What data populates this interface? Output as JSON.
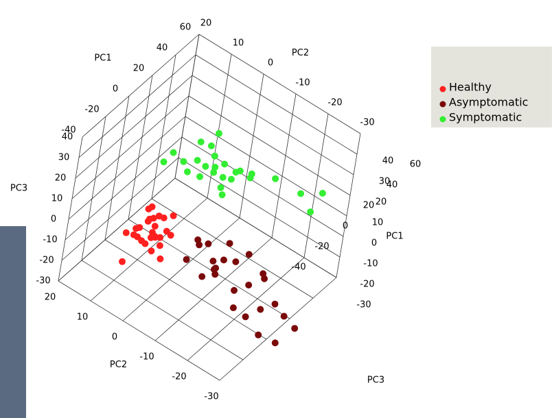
{
  "chart_data": {
    "type": "scatter3d",
    "xlabel": "PC1",
    "ylabel": "PC2",
    "zlabel": "PC3",
    "xlim": [
      -40,
      60
    ],
    "xticks": [
      -40,
      -20,
      0,
      20,
      40,
      60
    ],
    "ylim": [
      -30,
      20
    ],
    "yticks": [
      -30,
      -20,
      -10,
      0,
      10,
      20
    ],
    "zlim": [
      -30,
      40
    ],
    "zticks": [
      -30,
      -20,
      -10,
      0,
      10,
      20,
      30,
      40
    ],
    "grid": true,
    "legend": "upper right",
    "series": [
      {
        "name": "Healthy",
        "color": "#ff2020",
        "x": [
          -18,
          -20,
          -15,
          -22,
          -17,
          -19,
          -14,
          -24,
          -16,
          -21,
          -13,
          -25,
          -18,
          -12,
          -23,
          -20,
          -15,
          -27,
          -17,
          -11,
          -19,
          -22,
          -16,
          -28,
          -14,
          -30,
          -22
        ],
        "y": [
          2,
          1,
          3,
          0,
          4,
          -1,
          2,
          3,
          0,
          5,
          1,
          -1,
          6,
          4,
          2,
          -2,
          5,
          1,
          -3,
          0,
          3,
          6,
          2,
          4,
          -2,
          6,
          8
        ],
        "z": [
          0,
          5,
          -5,
          2,
          3,
          -3,
          6,
          -2,
          8,
          1,
          -4,
          4,
          -6,
          2,
          9,
          -8,
          7,
          0,
          3,
          -1,
          12,
          -3,
          -10,
          5,
          10,
          2,
          -18
        ]
      },
      {
        "name": "Asymptomatic",
        "color": "#7a0a0a",
        "x": [
          -13,
          -10,
          -16,
          -8,
          -14,
          -18,
          -6,
          -12,
          -20,
          -9,
          -15,
          -5,
          -11,
          -17,
          -3,
          -14,
          -8,
          -19,
          -4,
          -10,
          -16,
          0,
          -12,
          -7,
          -2
        ],
        "y": [
          -15,
          -12,
          -17,
          -20,
          -10,
          -14,
          -16,
          -22,
          -18,
          -25,
          -8,
          -28,
          -30,
          -24,
          -22,
          -27,
          -33,
          -12,
          -35,
          -18,
          -32,
          -26,
          -36,
          -14,
          -38
        ],
        "z": [
          0,
          4,
          -3,
          2,
          6,
          -6,
          -2,
          -8,
          3,
          -4,
          -5,
          0,
          -10,
          -12,
          5,
          -15,
          -6,
          8,
          -12,
          10,
          -18,
          -2,
          -20,
          -8,
          -16
        ]
      },
      {
        "name": "Symptomatic",
        "color": "#33ee33",
        "x": [
          12,
          10,
          15,
          8,
          14,
          11,
          18,
          6,
          13,
          16,
          9,
          20,
          7,
          17,
          12,
          22,
          10,
          5,
          14,
          25,
          28,
          30,
          18,
          4,
          3,
          32
        ],
        "y": [
          -4,
          -2,
          -6,
          0,
          -3,
          -7,
          -5,
          -2,
          -9,
          -1,
          -5,
          -8,
          2,
          -10,
          1,
          -12,
          -8,
          3,
          -14,
          -18,
          -25,
          -28,
          -2,
          6,
          8,
          -30
        ],
        "z": [
          20,
          22,
          18,
          24,
          26,
          16,
          22,
          19,
          21,
          28,
          25,
          20,
          17,
          24,
          30,
          22,
          14,
          22,
          26,
          24,
          22,
          15,
          34,
          24,
          18,
          25
        ]
      }
    ]
  }
}
